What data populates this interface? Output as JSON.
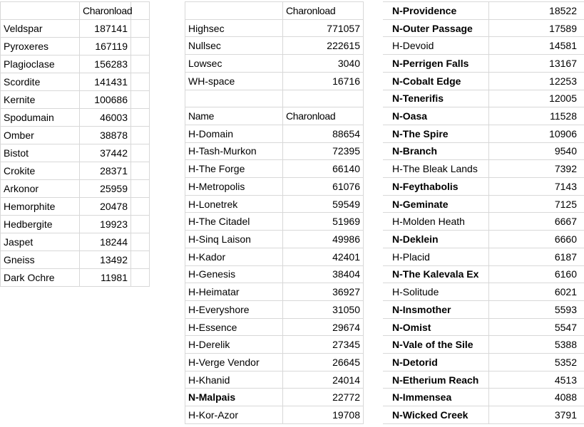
{
  "colors": {
    "background": "#ffffff",
    "gridline": "#d8d8d8",
    "text": "#000000"
  },
  "ore_table": {
    "rows": [
      {
        "name": "",
        "value": "Charonload",
        "type": "header"
      },
      {
        "name": "Veldspar",
        "value": "187141"
      },
      {
        "name": "Pyroxeres",
        "value": "167119"
      },
      {
        "name": "Plagioclase",
        "value": "156283"
      },
      {
        "name": "Scordite",
        "value": "141431"
      },
      {
        "name": "Kernite",
        "value": "100686"
      },
      {
        "name": "Spodumain",
        "value": "46003"
      },
      {
        "name": "Omber",
        "value": "38878"
      },
      {
        "name": "Bistot",
        "value": "37442"
      },
      {
        "name": "Crokite",
        "value": "28371"
      },
      {
        "name": "Arkonor",
        "value": "25959"
      },
      {
        "name": "Hemorphite",
        "value": "20478"
      },
      {
        "name": "Hedbergite",
        "value": "19923"
      },
      {
        "name": "Jaspet",
        "value": "18244"
      },
      {
        "name": "Gneiss",
        "value": "13492"
      },
      {
        "name": "Dark Ochre",
        "value": "11981"
      }
    ]
  },
  "mid_table": {
    "rows": [
      {
        "name": "",
        "value": "Charonload",
        "type": "header"
      },
      {
        "name": "Highsec",
        "value": "771057"
      },
      {
        "name": "Nullsec",
        "value": "222615"
      },
      {
        "name": "Lowsec",
        "value": "3040"
      },
      {
        "name": "WH-space",
        "value": "16716"
      },
      {
        "name": "",
        "value": ""
      },
      {
        "name": "Name",
        "value": "Charonload",
        "type": "header"
      },
      {
        "name": "H-Domain",
        "value": "88654"
      },
      {
        "name": "H-Tash-Murkon",
        "value": "72395"
      },
      {
        "name": "H-The Forge",
        "value": "66140"
      },
      {
        "name": "H-Metropolis",
        "value": "61076"
      },
      {
        "name": "H-Lonetrek",
        "value": "59549"
      },
      {
        "name": "H-The Citadel",
        "value": "51969"
      },
      {
        "name": "H-Sinq Laison",
        "value": "49986"
      },
      {
        "name": "H-Kador",
        "value": "42401"
      },
      {
        "name": "H-Genesis",
        "value": "38404"
      },
      {
        "name": "H-Heimatar",
        "value": "36927"
      },
      {
        "name": "H-Everyshore",
        "value": "31050"
      },
      {
        "name": "H-Essence",
        "value": "29674"
      },
      {
        "name": "H-Derelik",
        "value": "27345"
      },
      {
        "name": "H-Verge Vendor",
        "value": "26645"
      },
      {
        "name": "H-Khanid",
        "value": "24014"
      },
      {
        "name": "N-Malpais",
        "value": "22772",
        "bold": true
      },
      {
        "name": "H-Kor-Azor",
        "value": "19708"
      }
    ]
  },
  "right_table": {
    "rows": [
      {
        "name": "N-Providence",
        "value": "18522",
        "bold": true
      },
      {
        "name": "N-Outer Passage",
        "value": "17589",
        "bold": true
      },
      {
        "name": "H-Devoid",
        "value": "14581"
      },
      {
        "name": "N-Perrigen Falls",
        "value": "13167",
        "bold": true
      },
      {
        "name": "N-Cobalt Edge",
        "value": "12253",
        "bold": true
      },
      {
        "name": "N-Tenerifis",
        "value": "12005",
        "bold": true
      },
      {
        "name": "N-Oasa",
        "value": "11528",
        "bold": true
      },
      {
        "name": "N-The Spire",
        "value": "10906",
        "bold": true
      },
      {
        "name": "N-Branch",
        "value": "9540",
        "bold": true
      },
      {
        "name": "H-The Bleak Lands",
        "value": "7392"
      },
      {
        "name": "N-Feythabolis",
        "value": "7143",
        "bold": true
      },
      {
        "name": "N-Geminate",
        "value": "7125",
        "bold": true
      },
      {
        "name": "H-Molden Heath",
        "value": "6667"
      },
      {
        "name": "N-Deklein",
        "value": "6660",
        "bold": true
      },
      {
        "name": "H-Placid",
        "value": "6187"
      },
      {
        "name": "N-The Kalevala Ex",
        "value": "6160",
        "bold": true
      },
      {
        "name": "H-Solitude",
        "value": "6021"
      },
      {
        "name": "N-Insmother",
        "value": "5593",
        "bold": true
      },
      {
        "name": "N-Omist",
        "value": "5547",
        "bold": true
      },
      {
        "name": "N-Vale of the Sile",
        "value": "5388",
        "bold": true
      },
      {
        "name": "N-Detorid",
        "value": "5352",
        "bold": true
      },
      {
        "name": "N-Etherium Reach",
        "value": "4513",
        "bold": true
      },
      {
        "name": "N-Immensea",
        "value": "4088",
        "bold": true
      },
      {
        "name": "N-Wicked Creek",
        "value": "3791",
        "bold": true
      }
    ]
  }
}
